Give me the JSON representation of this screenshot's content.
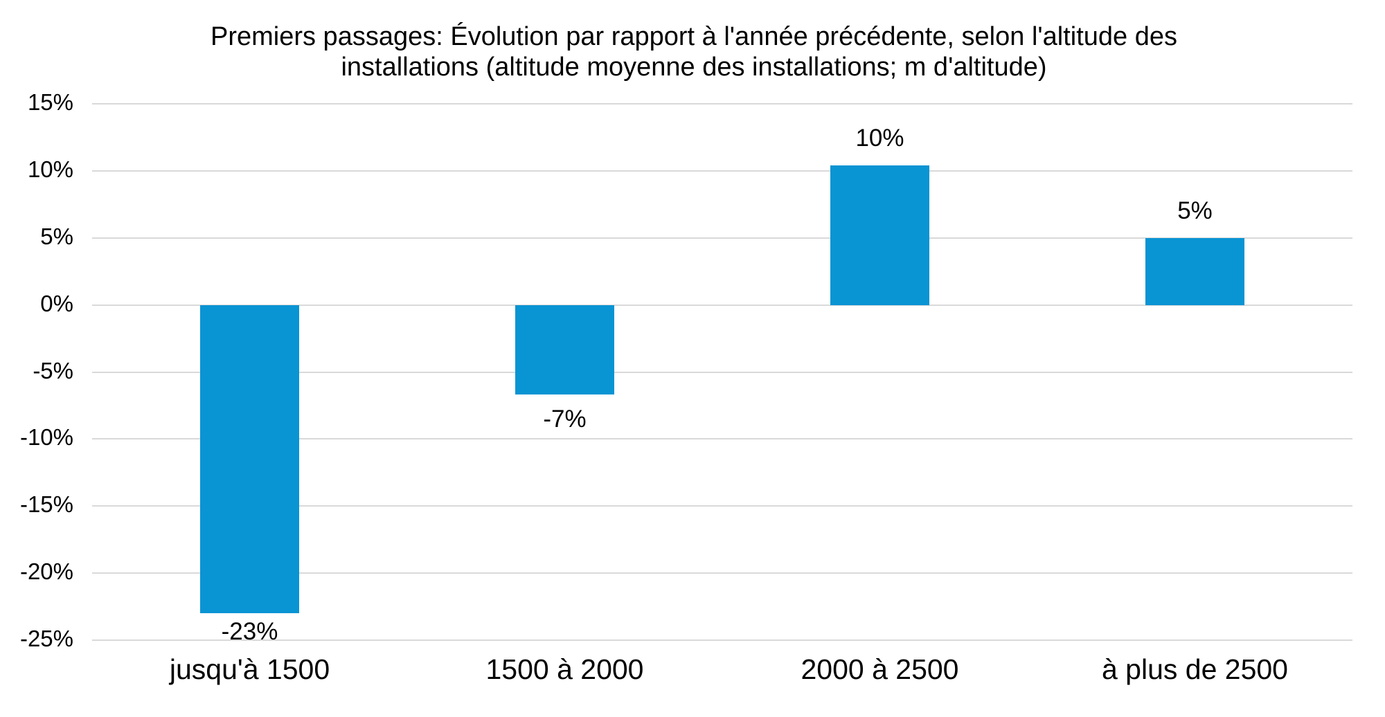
{
  "title": {
    "full": "Premiers passages: Évolution par rapport à l'année précédente, selon l'altitude des installations (altitude moyenne des installations; m d'altitude)",
    "lines": [
      "Premiers passages: Évolution par rapport à l'année précédente, selon l'altitude des",
      "installations (altitude moyenne des installations; m d'altitude)"
    ]
  },
  "chart_data": {
    "type": "bar",
    "title": "Premiers passages: Évolution par rapport à l'année précédente, selon l'altitude des installations (altitude moyenne des installations; m d'altitude)",
    "categories": [
      "jusqu'à 1500",
      "1500 à 2000",
      "2000 à 2500",
      "à plus de 2500"
    ],
    "values": [
      -23,
      -6.7,
      10.4,
      5
    ],
    "data_labels": [
      "-23%",
      "-7%",
      "10%",
      "5%"
    ],
    "xlabel": "",
    "ylabel": "",
    "ylim": [
      -25,
      15
    ],
    "ytick_step": 5,
    "yticks": [
      "15%",
      "10%",
      "5%",
      "0%",
      "-5%",
      "-10%",
      "-15%",
      "-20%",
      "-25%"
    ],
    "grid": true,
    "legend": false,
    "colors": {
      "bar": "#0994D3",
      "gridline": "#D9D9D9",
      "text": "#000000",
      "background": "#FFFFFF"
    }
  }
}
